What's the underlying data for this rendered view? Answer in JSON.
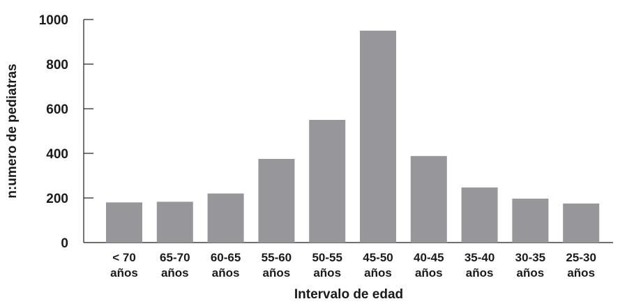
{
  "chart_data": {
    "type": "bar",
    "title": "",
    "xlabel": "Intervalo de edad",
    "ylabel": "n:umero de pediatras",
    "categories": [
      [
        "< 70",
        "años"
      ],
      [
        "65-70",
        "años"
      ],
      [
        "60-65",
        "años"
      ],
      [
        "55-60",
        "años"
      ],
      [
        "50-55",
        "años"
      ],
      [
        "45-50",
        "años"
      ],
      [
        "40-45",
        "años"
      ],
      [
        "35-40",
        "años"
      ],
      [
        "30-35",
        "años"
      ],
      [
        "25-30",
        "años"
      ]
    ],
    "values": [
      180,
      183,
      220,
      375,
      550,
      950,
      388,
      247,
      197,
      175
    ],
    "ylim": [
      0,
      1000
    ],
    "yticks": [
      "0",
      "200",
      "400",
      "600",
      "800",
      "1000"
    ],
    "grid": false,
    "bar_color": "#97979b",
    "axis_color": "#1a1a1a"
  }
}
